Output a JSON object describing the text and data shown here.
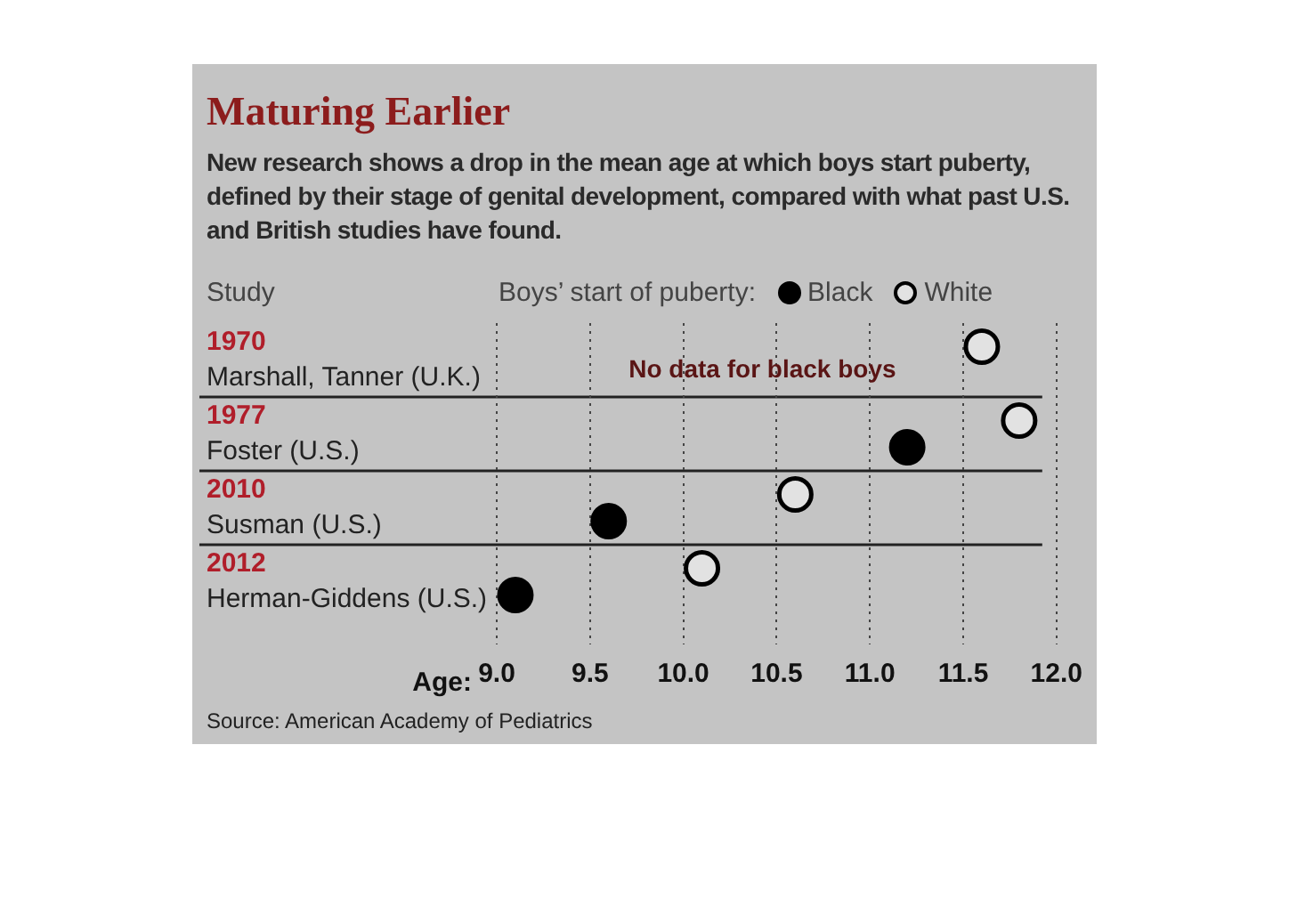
{
  "chart_data": {
    "type": "scatter",
    "orientation": "horizontal",
    "title": "Maturing Earlier",
    "subtitle": "New research shows a drop in the mean age at which boys start puberty, defined by their stage of genital development, compared with what past U.S. and British studies have found.",
    "ylabel": "Study",
    "xlabel": "Age:",
    "legend_title": "Boys’ start of puberty:",
    "legend": "top right",
    "marker": "circle",
    "grid": "x",
    "categories": [
      "1970\nMarshall, Tanner (U.K.)",
      "1977\nFoster (U.S.)",
      "2010\nSusman (U.S.)",
      "2012\nHerman-Giddens (U.S.)"
    ],
    "series": [
      {
        "name": "Black",
        "color": "#000000",
        "values": [
          null,
          11.2,
          9.6,
          9.1
        ]
      },
      {
        "name": "White",
        "color": "#e2e2e2",
        "values": [
          11.6,
          11.8,
          10.6,
          10.1
        ]
      }
    ],
    "xlim": [
      9,
      12
    ],
    "xticks": [
      {
        "value": 9,
        "label": "9.0"
      },
      9.5,
      {
        "value": 10,
        "label": "10.0"
      },
      10.5,
      {
        "value": 11,
        "label": "11.0"
      },
      11.5,
      {
        "value": 12,
        "label": "12.0"
      }
    ],
    "annotations": [
      "No data for black boys",
      "Source: American Academy of Pediatrics"
    ]
  }
}
